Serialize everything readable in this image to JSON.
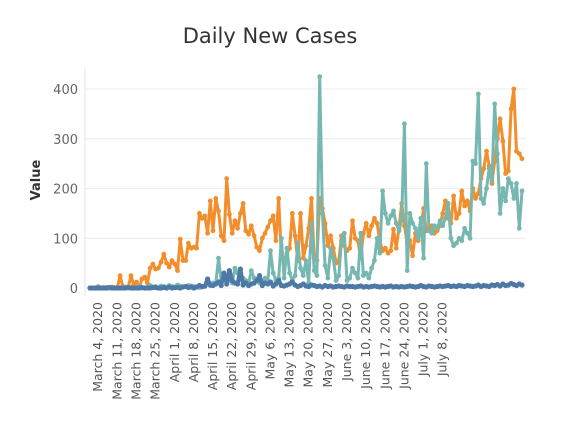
{
  "chart_data": {
    "type": "line",
    "title": "Daily New Cases",
    "xlabel": "",
    "ylabel": "Value",
    "ylim": [
      0,
      420
    ],
    "y_ticks": [
      0,
      100,
      200,
      300,
      400
    ],
    "x_tick_labels": [
      "March 4, 2020",
      "March 11, 2020",
      "March 18, 2020",
      "March 25, 2020",
      "April 1, 2020",
      "April 8, 2020",
      "April 15, 2020",
      "April 22, 2020",
      "April 29, 2020",
      "May 6, 2020",
      "May 13, 2020",
      "May 20, 2020",
      "May 27, 2020",
      "June 3, 2020",
      "June 10, 2020",
      "June 17, 2020",
      "June 24, 2020",
      "July 1, 2020",
      "July 8, 2020"
    ],
    "x_start": "March 1, 2020",
    "grid": "horizontal",
    "series": [
      {
        "color": "#f28e2b",
        "values": [
          0,
          0,
          0,
          3,
          0,
          1,
          0,
          0,
          2,
          1,
          0,
          25,
          3,
          0,
          2,
          25,
          6,
          12,
          0,
          18,
          22,
          10,
          40,
          48,
          38,
          40,
          52,
          68,
          50,
          42,
          55,
          48,
          35,
          98,
          55,
          55,
          90,
          80,
          82,
          80,
          150,
          140,
          145,
          110,
          175,
          115,
          180,
          155,
          105,
          95,
          220,
          148,
          110,
          135,
          120,
          150,
          170,
          115,
          108,
          125,
          105,
          82,
          75,
          100,
          110,
          122,
          135,
          145,
          95,
          180,
          60,
          55,
          70,
          80,
          150,
          105,
          55,
          150,
          60,
          85,
          120,
          180,
          60,
          55,
          180,
          160,
          130,
          85,
          105,
          80,
          50,
          55,
          105,
          85,
          75,
          80,
          135,
          100,
          95,
          60,
          110,
          130,
          105,
          125,
          140,
          130,
          95,
          75,
          80,
          70,
          75,
          118,
          80,
          120,
          170,
          125,
          90,
          95,
          65,
          110,
          95,
          120,
          160,
          115,
          118,
          125,
          110,
          115,
          125,
          150,
          175,
          140,
          130,
          185,
          140,
          150,
          195,
          165,
          175,
          155,
          200,
          180,
          190,
          220,
          240,
          275,
          245,
          210,
          255,
          300,
          340,
          295,
          230,
          235,
          360,
          400,
          275,
          270,
          260
        ]
      },
      {
        "color": "#76b7b2",
        "values": [
          0,
          0,
          0,
          2,
          0,
          0,
          1,
          0,
          0,
          0,
          1,
          0,
          0,
          2,
          0,
          0,
          1,
          0,
          3,
          0,
          0,
          1,
          5,
          2,
          3,
          0,
          4,
          3,
          2,
          5,
          3,
          2,
          6,
          4,
          2,
          3,
          5,
          4,
          3,
          2,
          1,
          2,
          3,
          8,
          5,
          10,
          10,
          60,
          15,
          20,
          25,
          15,
          10,
          40,
          30,
          25,
          20,
          15,
          10,
          35,
          20,
          15,
          10,
          15,
          20,
          10,
          75,
          30,
          15,
          20,
          100,
          20,
          80,
          30,
          15,
          25,
          90,
          40,
          25,
          55,
          10,
          130,
          35,
          25,
          425,
          150,
          45,
          20,
          80,
          60,
          15,
          25,
          95,
          110,
          15,
          20,
          40,
          30,
          20,
          110,
          25,
          30,
          20,
          40,
          55,
          100,
          70,
          195,
          150,
          130,
          145,
          155,
          130,
          115,
          140,
          330,
          35,
          150,
          130,
          120,
          100,
          140,
          60,
          250,
          115,
          110,
          125,
          120,
          135,
          125,
          140,
          170,
          100,
          85,
          90,
          100,
          95,
          120,
          110,
          100,
          255,
          250,
          390,
          180,
          170,
          200,
          240,
          215,
          370,
          270,
          150,
          200,
          175,
          220,
          210,
          180,
          210,
          120,
          195
        ]
      },
      {
        "color": "#4e79a7",
        "values": [
          0,
          0,
          0,
          0,
          0,
          0,
          0,
          1,
          0,
          0,
          0,
          0,
          0,
          0,
          1,
          0,
          0,
          0,
          0,
          1,
          0,
          0,
          0,
          1,
          1,
          0,
          0,
          1,
          0,
          2,
          0,
          1,
          1,
          0,
          2,
          3,
          1,
          2,
          0,
          2,
          5,
          3,
          4,
          18,
          6,
          5,
          8,
          12,
          5,
          30,
          8,
          35,
          15,
          10,
          8,
          38,
          6,
          10,
          5,
          8,
          10,
          15,
          25,
          5,
          10,
          8,
          12,
          4,
          8,
          15,
          5,
          4,
          6,
          8,
          12,
          6,
          3,
          5,
          8,
          4,
          3,
          6,
          5,
          3,
          4,
          2,
          5,
          3,
          4,
          2,
          3,
          4,
          3,
          2,
          4,
          3,
          3,
          2,
          3,
          4,
          2,
          3,
          2,
          3,
          4,
          3,
          2,
          3,
          2,
          3,
          4,
          2,
          3,
          2,
          3,
          2,
          3,
          4,
          3,
          2,
          3,
          5,
          3,
          2,
          4,
          3,
          2,
          3,
          4,
          3,
          4,
          5,
          3,
          4,
          3,
          5,
          4,
          3,
          5,
          4,
          3,
          4,
          6,
          3,
          5,
          4,
          3,
          6,
          5,
          7,
          4,
          8,
          5,
          6,
          9,
          7,
          5,
          8,
          6
        ]
      }
    ]
  }
}
